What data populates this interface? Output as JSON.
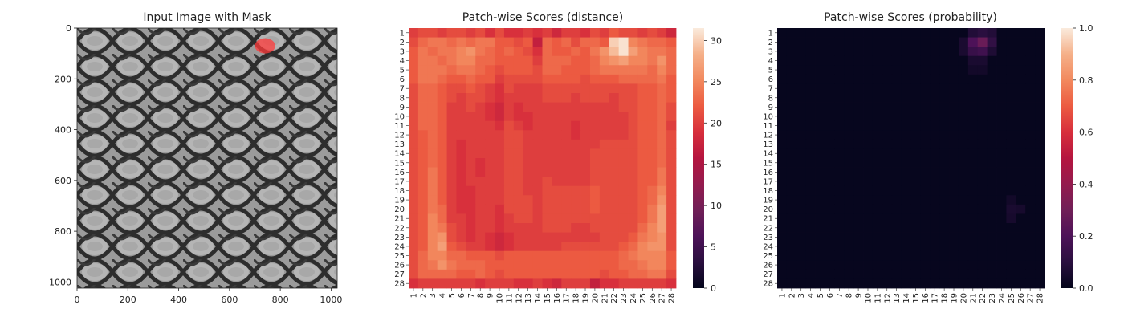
{
  "chart_data": [
    {
      "type": "image",
      "title": "Input Image with Mask",
      "xlim": [
        0,
        1024
      ],
      "ylim": [
        1024,
        0
      ],
      "xticks": [
        0,
        200,
        400,
        600,
        800,
        1000
      ],
      "yticks": [
        0,
        200,
        400,
        600,
        800,
        1000
      ],
      "mask_region": {
        "x": [
          700,
          780
        ],
        "y": [
          40,
          100
        ]
      },
      "colors": {
        "mask": "#ff3b3b",
        "mesh_bg": "#9a9a9a",
        "mesh_wire": "#2b2b2b"
      }
    },
    {
      "type": "heatmap",
      "title": "Patch-wise Scores (distance)",
      "rows": 28,
      "cols": 28,
      "row_labels": [
        "1",
        "2",
        "3",
        "4",
        "5",
        "6",
        "7",
        "8",
        "9",
        "10",
        "11",
        "12",
        "13",
        "14",
        "15",
        "16",
        "17",
        "18",
        "19",
        "20",
        "21",
        "22",
        "23",
        "24",
        "25",
        "26",
        "27",
        "28"
      ],
      "col_labels": [
        "1",
        "2",
        "3",
        "4",
        "5",
        "6",
        "7",
        "8",
        "9",
        "10",
        "11",
        "12",
        "13",
        "14",
        "15",
        "16",
        "17",
        "18",
        "19",
        "20",
        "21",
        "22",
        "23",
        "24",
        "25",
        "26",
        "27",
        "28"
      ],
      "vmin": 0,
      "vmax": 31.5,
      "colorbar_ticks": [
        0,
        5,
        10,
        15,
        20,
        25,
        30
      ],
      "values": [
        [
          20,
          21,
          21,
          20,
          21,
          21,
          20,
          21,
          19,
          21,
          19,
          19,
          20,
          19,
          20,
          18,
          20,
          20,
          19,
          21,
          20,
          22,
          21,
          21,
          20,
          21,
          20,
          18
        ],
        [
          21,
          23,
          24,
          24,
          23,
          24,
          23,
          24,
          24,
          22,
          22,
          21,
          22,
          17,
          23,
          22,
          23,
          21,
          23,
          23,
          22,
          30,
          31,
          25,
          24,
          23,
          23,
          22
        ],
        [
          22,
          24,
          23,
          24,
          24,
          25,
          26,
          24,
          23,
          22,
          23,
          22,
          21,
          19,
          23,
          22,
          22,
          23,
          22,
          24,
          26,
          29,
          31,
          27,
          25,
          24,
          24,
          23
        ],
        [
          22,
          24,
          24,
          23,
          24,
          25,
          25,
          23,
          23,
          22,
          22,
          22,
          22,
          20,
          23,
          23,
          23,
          22,
          22,
          23,
          25,
          26,
          27,
          25,
          25,
          24,
          26,
          23
        ],
        [
          22,
          24,
          24,
          24,
          23,
          24,
          24,
          23,
          22,
          21,
          22,
          22,
          22,
          21,
          23,
          23,
          22,
          22,
          22,
          23,
          24,
          24,
          24,
          24,
          24,
          23,
          25,
          23
        ],
        [
          22,
          24,
          24,
          23,
          22,
          22,
          23,
          22,
          22,
          20,
          21,
          21,
          21,
          21,
          22,
          22,
          22,
          22,
          21,
          22,
          22,
          22,
          23,
          23,
          23,
          23,
          24,
          22
        ],
        [
          21,
          23,
          23,
          22,
          21,
          21,
          22,
          21,
          20,
          19,
          21,
          20,
          20,
          20,
          21,
          21,
          21,
          21,
          21,
          21,
          21,
          21,
          21,
          21,
          22,
          22,
          23,
          22
        ],
        [
          21,
          23,
          23,
          22,
          21,
          20,
          21,
          21,
          20,
          19,
          20,
          20,
          20,
          20,
          21,
          21,
          21,
          20,
          21,
          21,
          21,
          20,
          21,
          21,
          22,
          22,
          23,
          22
        ],
        [
          21,
          23,
          23,
          22,
          20,
          20,
          21,
          20,
          19,
          18,
          20,
          19,
          20,
          20,
          20,
          20,
          20,
          20,
          20,
          20,
          20,
          20,
          21,
          21,
          22,
          22,
          23,
          21
        ],
        [
          21,
          23,
          23,
          22,
          20,
          20,
          20,
          20,
          19,
          18,
          20,
          19,
          19,
          20,
          20,
          20,
          20,
          20,
          20,
          20,
          20,
          20,
          20,
          21,
          22,
          22,
          23,
          21
        ],
        [
          21,
          23,
          23,
          22,
          20,
          20,
          20,
          20,
          20,
          19,
          21,
          20,
          19,
          20,
          20,
          20,
          20,
          19,
          20,
          20,
          20,
          20,
          20,
          21,
          22,
          22,
          23,
          20
        ],
        [
          21,
          22,
          23,
          22,
          20,
          20,
          20,
          20,
          20,
          20,
          21,
          21,
          20,
          20,
          20,
          20,
          20,
          19,
          20,
          20,
          20,
          20,
          20,
          21,
          22,
          22,
          23,
          21
        ],
        [
          21,
          22,
          23,
          22,
          20,
          19,
          20,
          20,
          20,
          20,
          21,
          21,
          20,
          20,
          20,
          20,
          20,
          20,
          20,
          20,
          21,
          21,
          21,
          21,
          22,
          22,
          23,
          21
        ],
        [
          21,
          22,
          23,
          22,
          20,
          19,
          20,
          20,
          20,
          20,
          21,
          21,
          20,
          20,
          20,
          20,
          20,
          20,
          20,
          21,
          21,
          21,
          21,
          21,
          22,
          22,
          23,
          21
        ],
        [
          21,
          22,
          23,
          22,
          20,
          19,
          20,
          19,
          20,
          20,
          21,
          21,
          20,
          20,
          20,
          20,
          20,
          20,
          20,
          21,
          21,
          21,
          21,
          21,
          22,
          22,
          23,
          21
        ],
        [
          21,
          22,
          24,
          22,
          20,
          19,
          20,
          19,
          20,
          20,
          21,
          21,
          20,
          20,
          20,
          20,
          20,
          20,
          20,
          21,
          21,
          21,
          21,
          21,
          22,
          22,
          24,
          21
        ],
        [
          21,
          22,
          24,
          22,
          20,
          19,
          20,
          20,
          20,
          20,
          21,
          21,
          20,
          20,
          21,
          20,
          20,
          20,
          20,
          21,
          21,
          21,
          21,
          21,
          22,
          22,
          24,
          21
        ],
        [
          21,
          22,
          24,
          22,
          20,
          19,
          19,
          20,
          20,
          20,
          21,
          21,
          20,
          20,
          21,
          21,
          21,
          21,
          21,
          22,
          21,
          21,
          21,
          21,
          22,
          23,
          25,
          21
        ],
        [
          21,
          22,
          24,
          22,
          20,
          19,
          19,
          20,
          20,
          20,
          21,
          21,
          21,
          20,
          21,
          21,
          21,
          21,
          21,
          22,
          21,
          21,
          21,
          21,
          22,
          23,
          26,
          21
        ],
        [
          21,
          22,
          24,
          23,
          20,
          19,
          19,
          20,
          20,
          19,
          21,
          21,
          21,
          20,
          21,
          21,
          21,
          21,
          21,
          22,
          21,
          21,
          21,
          21,
          22,
          24,
          27,
          21
        ],
        [
          21,
          22,
          25,
          23,
          20,
          20,
          19,
          20,
          20,
          19,
          20,
          21,
          21,
          20,
          21,
          21,
          21,
          21,
          21,
          21,
          21,
          21,
          21,
          21,
          22,
          24,
          27,
          21
        ],
        [
          21,
          22,
          25,
          24,
          21,
          20,
          19,
          20,
          20,
          19,
          20,
          20,
          20,
          20,
          21,
          21,
          21,
          20,
          20,
          21,
          21,
          21,
          21,
          21,
          23,
          25,
          27,
          21
        ],
        [
          21,
          22,
          25,
          26,
          21,
          20,
          19,
          20,
          19,
          18,
          19,
          20,
          20,
          20,
          20,
          20,
          20,
          20,
          20,
          20,
          21,
          21,
          21,
          22,
          24,
          25,
          26,
          21
        ],
        [
          21,
          22,
          25,
          27,
          22,
          21,
          20,
          20,
          19,
          18,
          19,
          20,
          20,
          20,
          20,
          20,
          21,
          21,
          21,
          21,
          21,
          21,
          22,
          23,
          25,
          26,
          26,
          21
        ],
        [
          21,
          23,
          25,
          25,
          23,
          23,
          22,
          22,
          22,
          21,
          22,
          22,
          22,
          22,
          22,
          22,
          22,
          22,
          22,
          22,
          22,
          22,
          23,
          24,
          25,
          25,
          25,
          22
        ],
        [
          21,
          23,
          24,
          26,
          24,
          23,
          23,
          23,
          22,
          22,
          22,
          22,
          22,
          22,
          22,
          22,
          22,
          22,
          22,
          22,
          22,
          22,
          23,
          23,
          24,
          25,
          25,
          22
        ],
        [
          21,
          23,
          23,
          23,
          23,
          22,
          22,
          23,
          22,
          21,
          22,
          22,
          22,
          22,
          22,
          22,
          22,
          22,
          22,
          22,
          21,
          22,
          22,
          23,
          23,
          24,
          24,
          21
        ],
        [
          19,
          20,
          20,
          20,
          20,
          20,
          20,
          19,
          20,
          20,
          20,
          19,
          19,
          20,
          19,
          18,
          20,
          20,
          20,
          17,
          19,
          19,
          20,
          20,
          20,
          20,
          20,
          19
        ]
      ]
    },
    {
      "type": "heatmap",
      "title": "Patch-wise Scores (probability)",
      "rows": 28,
      "cols": 28,
      "row_labels": [
        "1",
        "2",
        "3",
        "4",
        "5",
        "6",
        "7",
        "8",
        "9",
        "10",
        "11",
        "12",
        "13",
        "14",
        "15",
        "16",
        "17",
        "18",
        "19",
        "20",
        "21",
        "22",
        "23",
        "24",
        "25",
        "26",
        "27",
        "28"
      ],
      "col_labels": [
        "1",
        "2",
        "3",
        "4",
        "5",
        "6",
        "7",
        "8",
        "9",
        "10",
        "11",
        "12",
        "13",
        "14",
        "15",
        "16",
        "17",
        "18",
        "19",
        "20",
        "21",
        "22",
        "23",
        "24",
        "25",
        "26",
        "27",
        "28"
      ],
      "vmin": 0,
      "vmax": 1,
      "colorbar_ticks": [
        0.0,
        0.2,
        0.4,
        0.6,
        0.8,
        1.0
      ],
      "colorbar_tick_labels": [
        "0.0",
        "0.2",
        "0.4",
        "0.6",
        "0.8",
        "1.0"
      ],
      "background_value": 0.01,
      "hot_cells": [
        {
          "row": 1,
          "col": 21,
          "value": 0.08
        },
        {
          "row": 1,
          "col": 22,
          "value": 0.1
        },
        {
          "row": 1,
          "col": 23,
          "value": 0.08
        },
        {
          "row": 2,
          "col": 20,
          "value": 0.06
        },
        {
          "row": 2,
          "col": 21,
          "value": 0.2
        },
        {
          "row": 2,
          "col": 22,
          "value": 0.28
        },
        {
          "row": 2,
          "col": 23,
          "value": 0.12
        },
        {
          "row": 3,
          "col": 20,
          "value": 0.06
        },
        {
          "row": 3,
          "col": 21,
          "value": 0.14
        },
        {
          "row": 3,
          "col": 22,
          "value": 0.16
        },
        {
          "row": 3,
          "col": 23,
          "value": 0.07
        },
        {
          "row": 4,
          "col": 21,
          "value": 0.06
        },
        {
          "row": 4,
          "col": 22,
          "value": 0.06
        },
        {
          "row": 5,
          "col": 21,
          "value": 0.04
        },
        {
          "row": 5,
          "col": 22,
          "value": 0.04
        },
        {
          "row": 19,
          "col": 25,
          "value": 0.04
        },
        {
          "row": 20,
          "col": 25,
          "value": 0.06
        },
        {
          "row": 20,
          "col": 26,
          "value": 0.05
        },
        {
          "row": 21,
          "col": 25,
          "value": 0.05
        }
      ]
    }
  ]
}
